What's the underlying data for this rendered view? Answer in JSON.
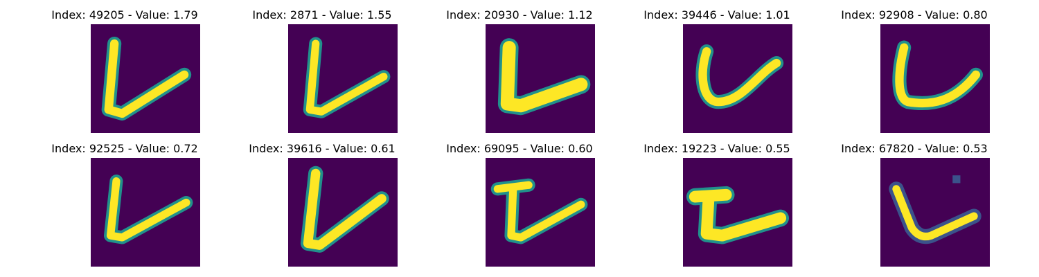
{
  "figure": {
    "colormap": "viridis",
    "background": "#440154",
    "foreground": "#fde725",
    "edge": "#21918c",
    "panels": [
      {
        "title": "Index: 49205 - Value: 1.79",
        "glyph": "V-sharp"
      },
      {
        "title": "Index: 2871 - Value: 1.55",
        "glyph": "V-sharp"
      },
      {
        "title": "Index: 20930 - Value: 1.12",
        "glyph": "V-bold"
      },
      {
        "title": "Index: 39446 - Value: 1.01",
        "glyph": "U-curve"
      },
      {
        "title": "Index: 92908 - Value: 0.80",
        "glyph": "U-flat"
      },
      {
        "title": "Index: 92525 - Value: 0.72",
        "glyph": "V-sharp"
      },
      {
        "title": "Index: 39616 - Value: 0.61",
        "glyph": "V-tall"
      },
      {
        "title": "Index: 69095 - Value: 0.60",
        "glyph": "hooked"
      },
      {
        "title": "Index: 19223 - Value: 0.55",
        "glyph": "serif"
      },
      {
        "title": "Index: 67820 - Value: 0.53",
        "glyph": "V-dot"
      }
    ]
  }
}
